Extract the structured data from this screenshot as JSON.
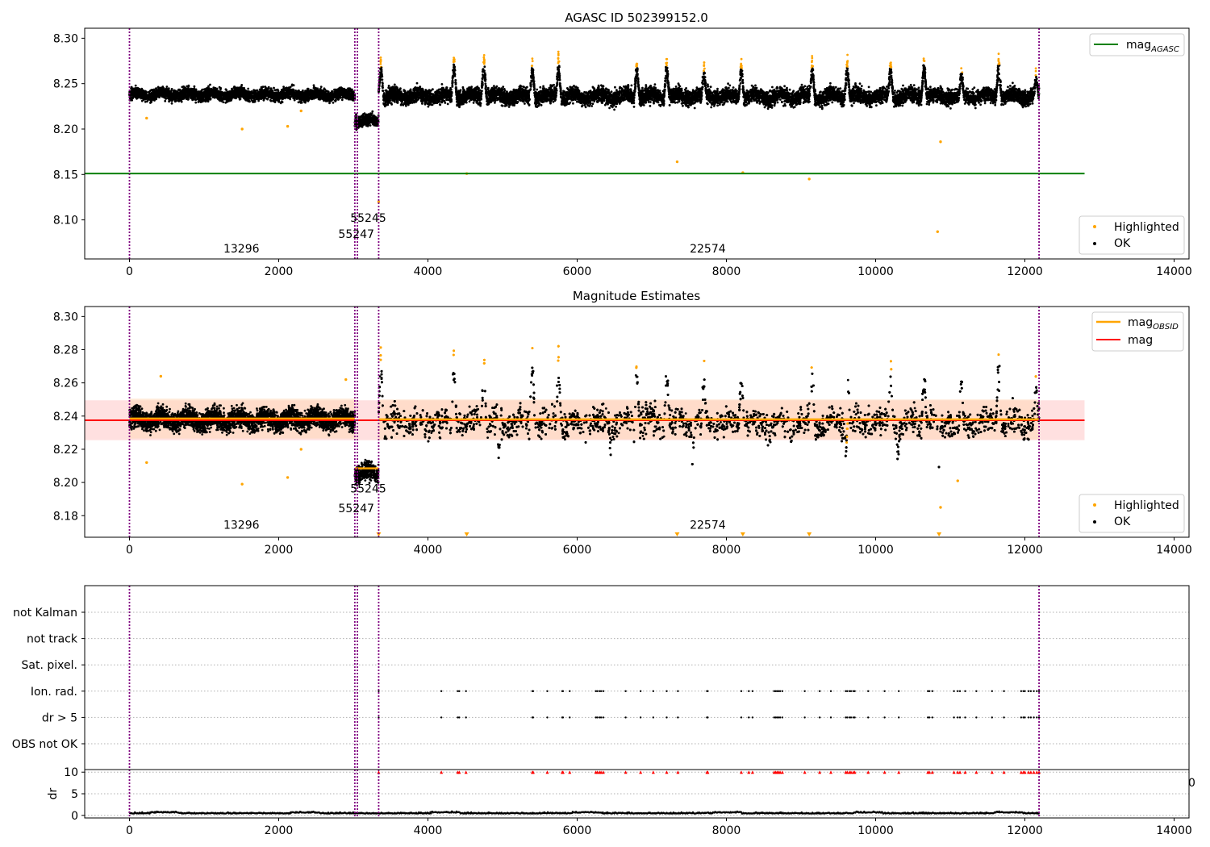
{
  "colors": {
    "ok": "#000000",
    "highlighted": "#ffa500",
    "mag_agasc": "#008000",
    "mag": "#ff0000",
    "mag_obsid": "#ffa500",
    "obsid_line": "#800080",
    "band_red": "#ffcccc",
    "band_orange": "#ffd8b8",
    "flag_red": "#ff0000"
  },
  "chart_data": [
    {
      "type": "scatter",
      "title": "AGASC ID 502399152.0",
      "xlabel": "",
      "ylabel": "",
      "xlim": [
        -600,
        14200
      ],
      "ylim": [
        8.057,
        8.311
      ],
      "xticks": [
        0,
        2000,
        4000,
        6000,
        8000,
        10000,
        12000,
        14000
      ],
      "xtick_labels": [
        "0",
        "2000",
        "4000",
        "6000",
        "8000",
        "10000",
        "12000",
        "14000"
      ],
      "yticks": [
        8.1,
        8.15,
        8.2,
        8.25,
        8.3
      ],
      "ytick_labels": [
        "8.10",
        "8.15",
        "8.20",
        "8.25",
        "8.30"
      ],
      "grid": false,
      "lines": [
        {
          "name": "mag_AGASC",
          "label_main": "mag",
          "label_sub": "AGASC",
          "y": 8.151,
          "x": [
            -600,
            12800
          ]
        }
      ],
      "obsid_boundaries": [
        0,
        3020,
        3055,
        3340,
        12190
      ],
      "obsid_labels": [
        {
          "text": "13296",
          "x": 1500,
          "y": 8.064
        },
        {
          "text": "55247",
          "x": 3040,
          "y": 8.08
        },
        {
          "text": "55245",
          "x": 3200,
          "y": 8.098
        },
        {
          "text": "22574",
          "x": 7750,
          "y": 8.064
        }
      ],
      "segments": [
        {
          "x0": 0,
          "x1": 3020,
          "center": 8.238,
          "spread": 0.006
        },
        {
          "x0": 3020,
          "x1": 3340,
          "center": 8.209,
          "spread": 0.006
        },
        {
          "x0": 3340,
          "x1": 12190,
          "center": 8.236,
          "spread": 0.008
        }
      ],
      "spikes": [
        {
          "x": 3370,
          "peak": 8.28
        },
        {
          "x": 4350,
          "peak": 8.286
        },
        {
          "x": 4750,
          "peak": 8.285
        },
        {
          "x": 5400,
          "peak": 8.28
        },
        {
          "x": 5750,
          "peak": 8.285
        },
        {
          "x": 6800,
          "peak": 8.28
        },
        {
          "x": 7200,
          "peak": 8.282
        },
        {
          "x": 7700,
          "peak": 8.275
        },
        {
          "x": 8200,
          "peak": 8.278
        },
        {
          "x": 9150,
          "peak": 8.28
        },
        {
          "x": 9620,
          "peak": 8.28
        },
        {
          "x": 10200,
          "peak": 8.279
        },
        {
          "x": 10650,
          "peak": 8.284
        },
        {
          "x": 11150,
          "peak": 8.272
        },
        {
          "x": 11650,
          "peak": 8.285
        },
        {
          "x": 12150,
          "peak": 8.266
        }
      ],
      "outliers": [
        {
          "x": 230,
          "y": 8.212
        },
        {
          "x": 1510,
          "y": 8.2
        },
        {
          "x": 2120,
          "y": 8.203
        },
        {
          "x": 2300,
          "y": 8.22
        },
        {
          "x": 4520,
          "y": 8.151
        },
        {
          "x": 7340,
          "y": 8.164
        },
        {
          "x": 8220,
          "y": 8.152
        },
        {
          "x": 9110,
          "y": 8.145
        },
        {
          "x": 10870,
          "y": 8.186
        },
        {
          "x": 10830,
          "y": 8.087
        },
        {
          "x": 3340,
          "y": 8.12
        }
      ],
      "legends": [
        {
          "position": "upper right",
          "entries": [
            {
              "label": "mag",
              "sub": "AGASC",
              "marker": "line",
              "color": "#008000"
            }
          ]
        },
        {
          "position": "lower right",
          "entries": [
            {
              "label": "Highlighted",
              "marker": "dot",
              "color": "#ffa500"
            },
            {
              "label": "OK",
              "marker": "dot",
              "color": "#000000"
            }
          ]
        }
      ]
    },
    {
      "type": "scatter",
      "title": "Magnitude Estimates",
      "xlabel": "",
      "ylabel": "",
      "xlim": [
        -600,
        14200
      ],
      "ylim": [
        8.167,
        8.306
      ],
      "xticks": [
        0,
        2000,
        4000,
        6000,
        8000,
        10000,
        12000,
        14000
      ],
      "xtick_labels": [
        "0",
        "2000",
        "4000",
        "6000",
        "8000",
        "10000",
        "12000",
        "14000"
      ],
      "yticks": [
        8.18,
        8.2,
        8.22,
        8.24,
        8.26,
        8.28,
        8.3
      ],
      "ytick_labels": [
        "8.18",
        "8.20",
        "8.22",
        "8.24",
        "8.26",
        "8.28",
        "8.30"
      ],
      "grid": false,
      "lines": [
        {
          "name": "mag",
          "y": 8.2375,
          "x": [
            -600,
            12800
          ],
          "band": [
            8.2255,
            8.2495
          ]
        },
        {
          "name": "mag_OBSID",
          "label_main": "mag",
          "label_sub": "OBSID",
          "segments": [
            {
              "x0": 0,
              "x1": 3020,
              "y": 8.2385,
              "band": [
                8.2265,
                8.2505
              ]
            },
            {
              "x0": 3020,
              "x1": 3340,
              "y": 8.2085
            },
            {
              "x0": 3340,
              "x1": 12190,
              "y": 8.238,
              "band": [
                8.226,
                8.25
              ]
            }
          ]
        }
      ],
      "obsid_boundaries": [
        0,
        3020,
        3055,
        3340,
        12190
      ],
      "obsid_labels": [
        {
          "text": "13296",
          "x": 1500,
          "y": 8.172
        },
        {
          "text": "55247",
          "x": 3040,
          "y": 8.182
        },
        {
          "text": "55245",
          "x": 3200,
          "y": 8.194
        },
        {
          "text": "22574",
          "x": 7750,
          "y": 8.172
        }
      ],
      "segments": [
        {
          "x0": 0,
          "x1": 3020,
          "center": 8.238,
          "spread": 0.006
        },
        {
          "x0": 3020,
          "x1": 3340,
          "center": 8.206,
          "spread": 0.005
        },
        {
          "x0": 3340,
          "x1": 12190,
          "center": 8.236,
          "spread": 0.008
        }
      ],
      "spikes": [
        {
          "x": 3370,
          "peak": 8.283
        },
        {
          "x": 4350,
          "peak": 8.287
        },
        {
          "x": 4750,
          "peak": 8.285
        },
        {
          "x": 5400,
          "peak": 8.284
        },
        {
          "x": 5750,
          "peak": 8.286
        },
        {
          "x": 6800,
          "peak": 8.28
        },
        {
          "x": 7200,
          "peak": 8.282
        },
        {
          "x": 7700,
          "peak": 8.275
        },
        {
          "x": 8200,
          "peak": 8.278
        },
        {
          "x": 9150,
          "peak": 8.282
        },
        {
          "x": 9620,
          "peak": 8.28
        },
        {
          "x": 10200,
          "peak": 8.279
        },
        {
          "x": 10650,
          "peak": 8.276
        },
        {
          "x": 11150,
          "peak": 8.272
        },
        {
          "x": 11650,
          "peak": 8.285
        },
        {
          "x": 12150,
          "peak": 8.266
        }
      ],
      "dips": [
        {
          "x": 4950,
          "low": 8.206
        },
        {
          "x": 7550,
          "low": 8.203
        },
        {
          "x": 10300,
          "low": 8.199
        },
        {
          "x": 10850,
          "low": 8.207
        },
        {
          "x": 6450,
          "low": 8.21
        },
        {
          "x": 9600,
          "low": 8.212
        }
      ],
      "outliers": [
        {
          "x": 230,
          "y": 8.212
        },
        {
          "x": 1510,
          "y": 8.199
        },
        {
          "x": 2120,
          "y": 8.203
        },
        {
          "x": 2300,
          "y": 8.22
        },
        {
          "x": 2900,
          "y": 8.262
        },
        {
          "x": 420,
          "y": 8.264
        },
        {
          "x": 10870,
          "y": 8.185
        },
        {
          "x": 11100,
          "y": 8.201
        }
      ],
      "markers_below": [
        3340,
        4520,
        7340,
        8220,
        9110,
        10850
      ],
      "legends": [
        {
          "position": "upper right",
          "entries": [
            {
              "label": "mag",
              "sub": "OBSID",
              "marker": "line",
              "color": "#ffa500"
            },
            {
              "label": "mag",
              "marker": "line",
              "color": "#ff0000"
            }
          ]
        },
        {
          "position": "lower right",
          "entries": [
            {
              "label": "Highlighted",
              "marker": "dot",
              "color": "#ffa500"
            },
            {
              "label": "OK",
              "marker": "dot",
              "color": "#000000"
            }
          ]
        }
      ]
    },
    {
      "type": "scatter",
      "title": "",
      "xlabel": "",
      "ylabel": "",
      "xlim": [
        -600,
        14200
      ],
      "categories": [
        "not Kalman",
        "not track",
        "Sat. pixel.",
        "Ion. rad.",
        "dr > 5",
        "OBS not OK"
      ],
      "grid": true,
      "obsid_boundaries": [
        0,
        3020,
        3055,
        3340,
        12190
      ],
      "flag_positions": {
        "Ion. rad.": [
          3340,
          4180,
          4400,
          4420,
          4510,
          5400,
          5410,
          5600,
          5800,
          5810,
          5900,
          6250,
          6270,
          6300,
          6320,
          6350,
          6650,
          6850,
          7020,
          7200,
          7350,
          7740,
          7750,
          8200,
          8300,
          8350,
          8640,
          8660,
          8680,
          8700,
          8720,
          8750,
          9050,
          9250,
          9400,
          9600,
          9620,
          9650,
          9670,
          9700,
          9720,
          9900,
          10120,
          10310,
          10700,
          10720,
          10760,
          11050,
          11100,
          11130,
          11200,
          11350,
          11560,
          11720,
          11950,
          11980,
          12000,
          12050,
          12080,
          12120,
          12160,
          12190
        ],
        "dr > 5": [
          3340,
          4180,
          4400,
          4420,
          4510,
          5400,
          5410,
          5600,
          5800,
          5810,
          5900,
          6250,
          6270,
          6300,
          6320,
          6350,
          6650,
          6850,
          7020,
          7200,
          7350,
          7740,
          7750,
          8200,
          8300,
          8350,
          8640,
          8660,
          8680,
          8700,
          8720,
          8750,
          9050,
          9250,
          9400,
          9600,
          9620,
          9650,
          9670,
          9700,
          9720,
          9900,
          10120,
          10310,
          10700,
          10720,
          10760,
          11050,
          11100,
          11130,
          11200,
          11350,
          11560,
          11720,
          11950,
          11980,
          12000,
          12050,
          12080,
          12120,
          12160,
          12190
        ]
      },
      "ytick_labels": [
        "not Kalman",
        "not track",
        "Sat. pixel.",
        "Ion. rad.",
        "dr > 5",
        "OBS not OK"
      ]
    },
    {
      "type": "scatter",
      "title": "",
      "xlabel": "",
      "ylabel": "dr",
      "xlim": [
        -600,
        14200
      ],
      "ylim": [
        -0.6,
        10.6
      ],
      "xticks": [
        0,
        2000,
        4000,
        6000,
        8000,
        10000,
        12000,
        14000
      ],
      "xtick_labels": [
        "0",
        "2000",
        "4000",
        "6000",
        "8000",
        "10000",
        "12000",
        "14000"
      ],
      "yticks": [
        0,
        5,
        10
      ],
      "ytick_labels": [
        "0",
        "5",
        "10"
      ],
      "grid": true,
      "obsid_boundaries": [
        0,
        3020,
        3055,
        3340,
        12190
      ],
      "dr_baseline": 0.4,
      "capped_value": 10,
      "stray_tick_label": "0"
    }
  ]
}
